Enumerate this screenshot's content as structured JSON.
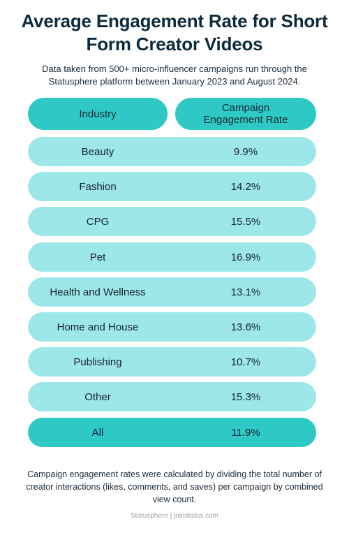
{
  "title": "Average Engagement Rate for Short Form Creator Videos",
  "subtitle": "Data taken from 500+ micro-influencer campaigns run through the Statusphere platform between January 2023 and August 2024.",
  "header": {
    "industry": "Industry",
    "rate": "Campaign Engagement Rate"
  },
  "chart_data": {
    "type": "table",
    "columns": [
      "Industry",
      "Campaign Engagement Rate"
    ],
    "rows": [
      {
        "industry": "Beauty",
        "rate": "9.9%"
      },
      {
        "industry": "Fashion",
        "rate": "14.2%"
      },
      {
        "industry": "CPG",
        "rate": "15.5%"
      },
      {
        "industry": "Pet",
        "rate": "16.9%"
      },
      {
        "industry": "Health and Wellness",
        "rate": "13.1%"
      },
      {
        "industry": "Home and House",
        "rate": "13.6%"
      },
      {
        "industry": "Publishing",
        "rate": "10.7%"
      },
      {
        "industry": "Other",
        "rate": "15.3%"
      },
      {
        "industry": "All",
        "rate": "11.9%"
      }
    ],
    "colors": {
      "header": "#2ec9c4",
      "row": "#9ee7e8",
      "total_row": "#2ec9c4"
    }
  },
  "note": "Campaign engagement rates were calculated by dividing the total number of creator interactions (likes, comments, and saves) per campaign by combined view count.",
  "footer": "Statusphere | joinstatus.com"
}
